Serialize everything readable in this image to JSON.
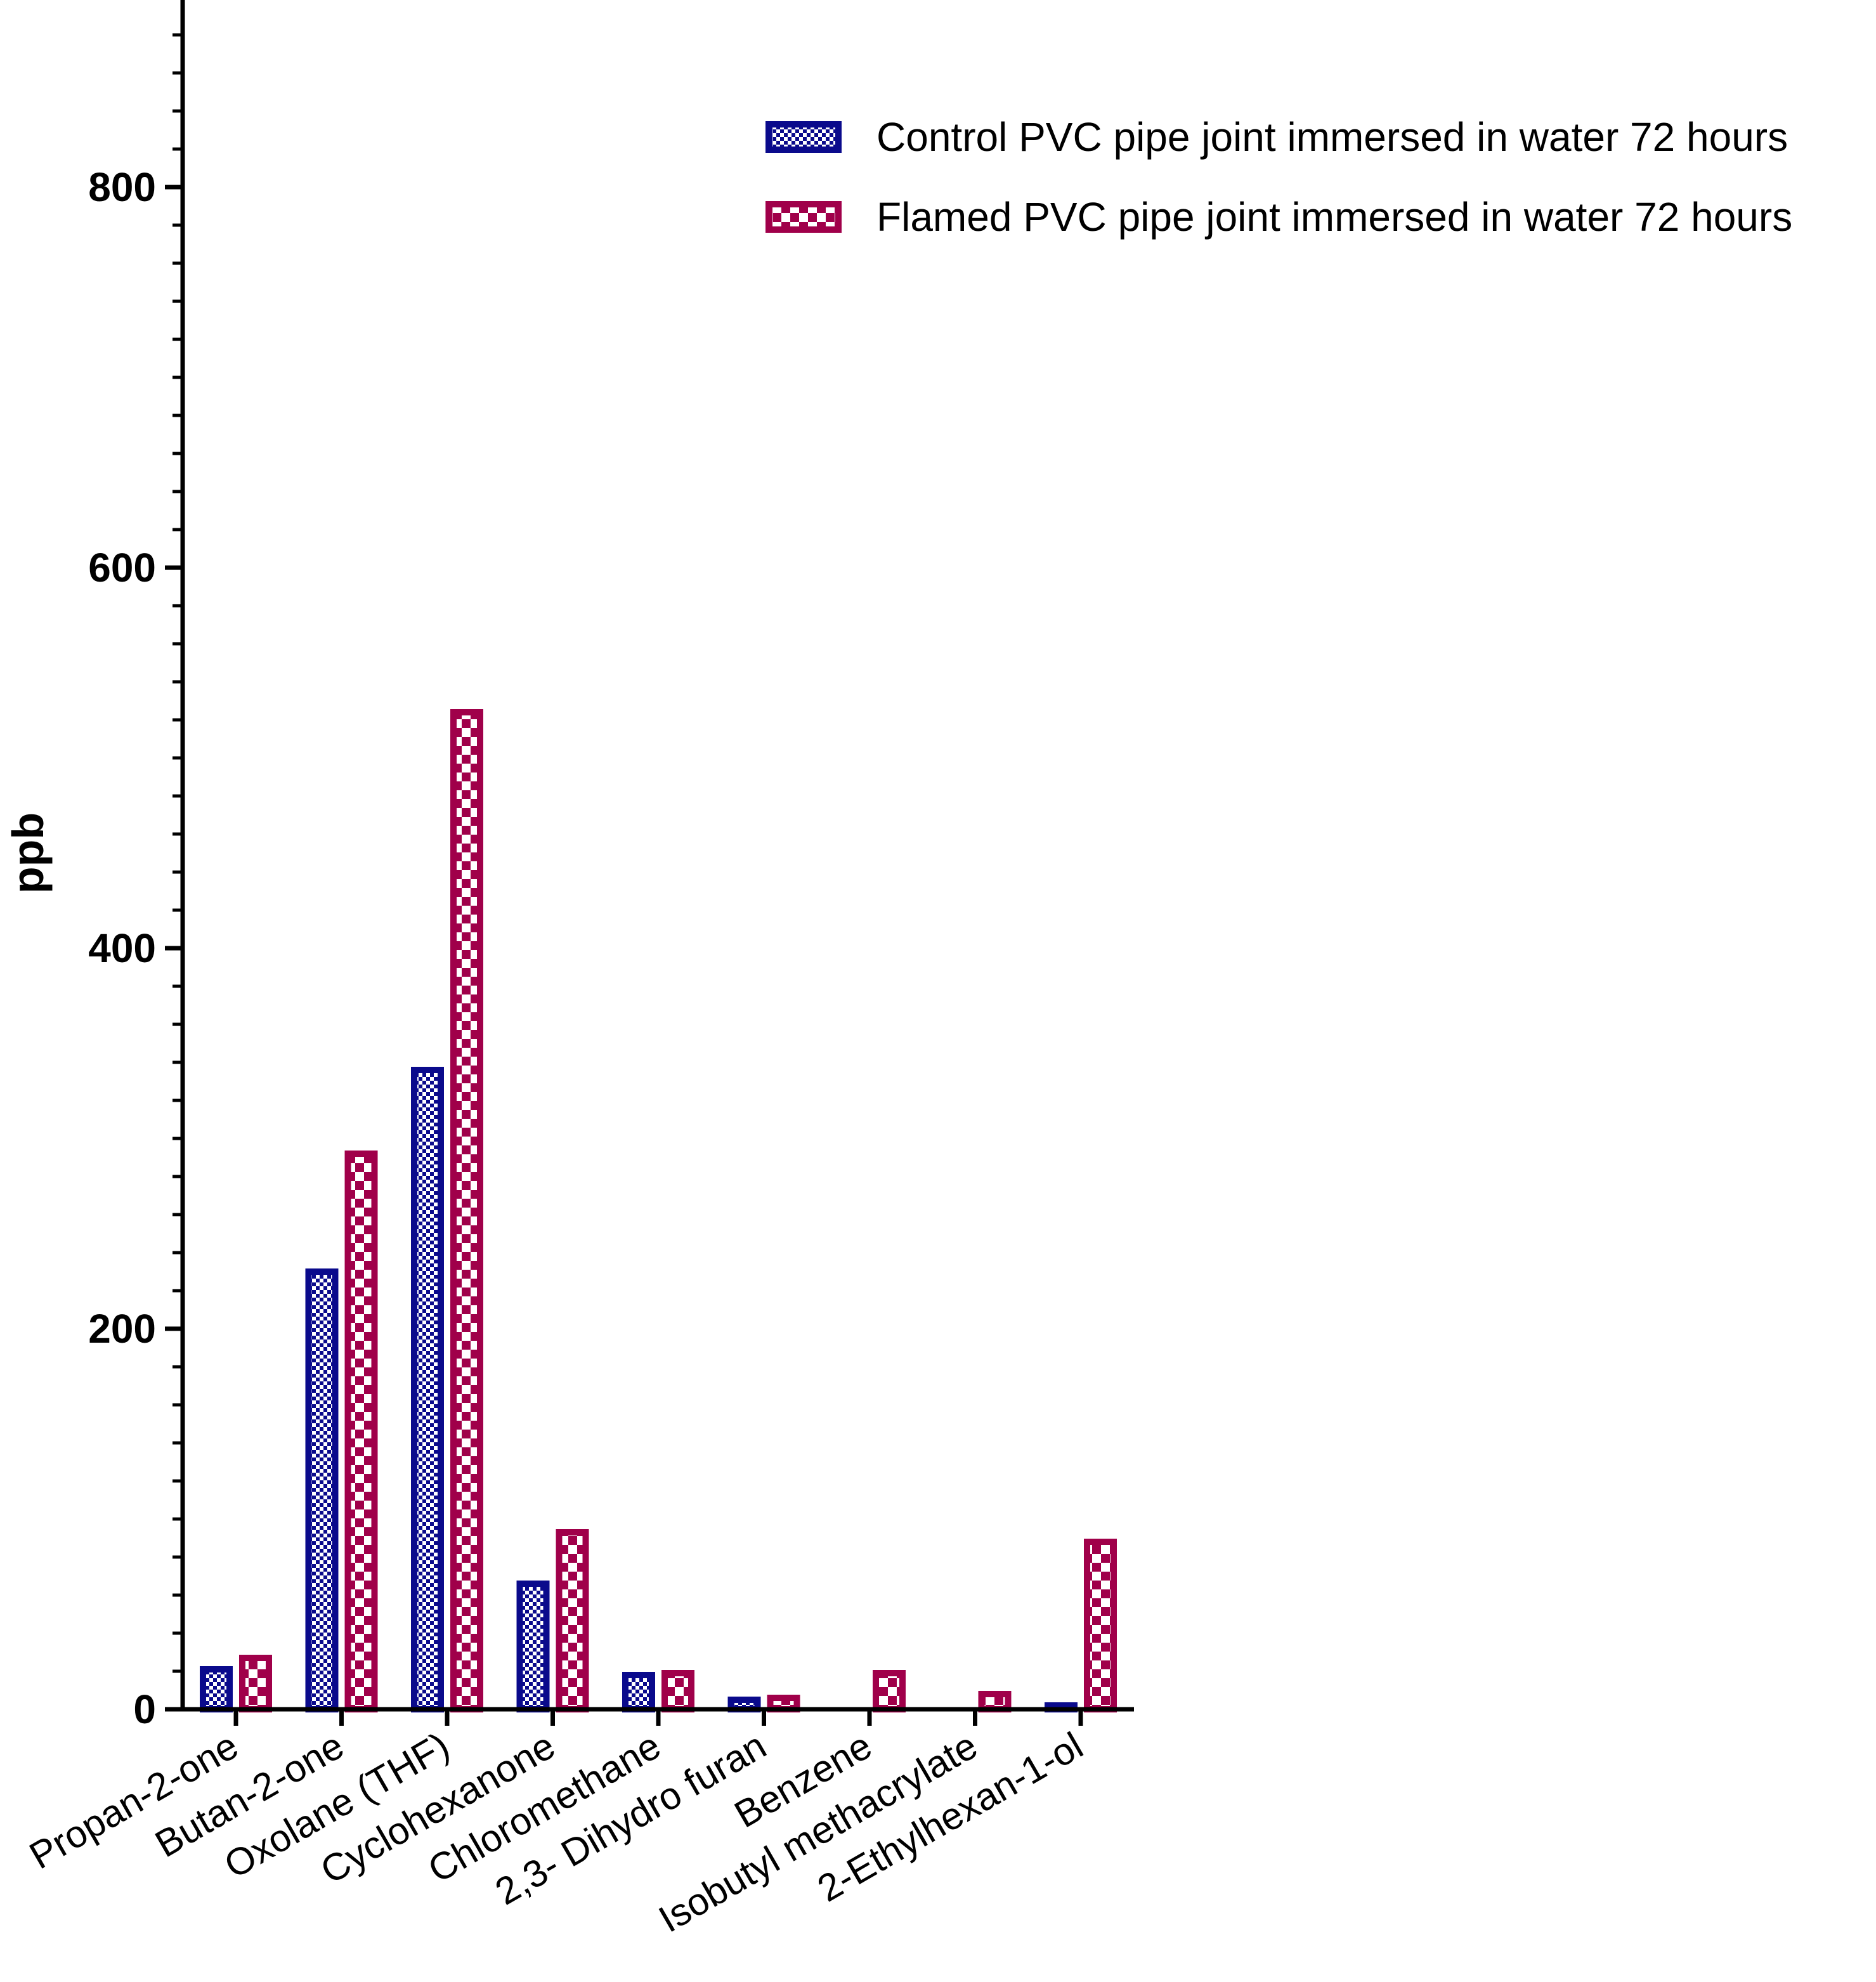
{
  "chart_data": {
    "type": "bar",
    "title": "",
    "xlabel": "",
    "ylabel": "ppb",
    "ylim": [
      0,
      900
    ],
    "yticks_major": [
      0,
      200,
      400,
      600,
      800
    ],
    "ytick_minor_step": 20,
    "categories": [
      "Propan-2-one",
      "Butan-2-one",
      "Oxolane (THF)",
      "Cyclohexanone",
      "Chloromethane",
      "2,3- Dihydro furan",
      "Benzene",
      "Isobutyl methacrylate",
      "2-Ethylhexan-1-ol"
    ],
    "series": [
      {
        "name": "Control PVC pipe joint immersed in water 72 hours",
        "color": "#0a0a8c",
        "pattern": "fine-check",
        "values": [
          21,
          230,
          336,
          66,
          18,
          5,
          0,
          0,
          2
        ]
      },
      {
        "name": "Flamed PVC pipe joint immersed in water 72 hours",
        "color": "#a0004a",
        "pattern": "coarse-check",
        "values": [
          27,
          292,
          524,
          93,
          19,
          6,
          19,
          8,
          88
        ]
      }
    ],
    "legend": {
      "position": "top-right"
    },
    "grid": false
  }
}
